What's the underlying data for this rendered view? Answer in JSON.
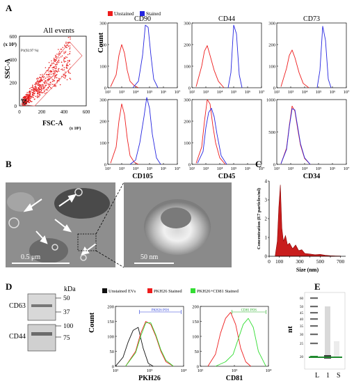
{
  "panel_labels": {
    "a": "A",
    "b": "B",
    "c": "C",
    "d": "D",
    "e": "E"
  },
  "colors": {
    "unstained": "#ee1c1c",
    "stained": "#2424e0",
    "pkh_black": "#111111",
    "pkh_red": "#ee1c1c",
    "pkh_green": "#33dd33",
    "band_green": "#1f8a2e",
    "gate": "#e86a6a"
  },
  "icons": {
    "legend_unstained": "red-square-icon",
    "legend_stained": "blue-square-icon"
  },
  "scatter": {
    "title": "All events",
    "gate_label": "P1(92.97 %)",
    "ylabel": "SSC-A",
    "yunit": "(x 10³)",
    "xlabel": "FSC-A",
    "xunit": "(x 10³)",
    "yticks": [
      "0",
      "200",
      "400",
      "600"
    ],
    "xticks": [
      "0",
      "200",
      "400",
      "600"
    ]
  },
  "panel_a": {
    "count_label": "Count",
    "legend": {
      "unstained": "Unstained",
      "stained": "Stained"
    },
    "xticks": [
      "10²",
      "10³",
      "10⁴",
      "10⁵",
      "10⁶",
      "10⁷"
    ],
    "row1_yticks": [
      "0",
      "100",
      "200",
      "300"
    ],
    "row2_yticks": {
      "cd105": [
        "0",
        "100",
        "200",
        "300"
      ],
      "cd45": [
        "0",
        "100",
        "200",
        "300"
      ],
      "cd34": [
        "0",
        "500",
        "1000"
      ]
    }
  },
  "panel_b": {
    "scale_left": "0.5 μm",
    "scale_right": "50 nm"
  },
  "panel_d": {
    "kda_label": "kDa",
    "blot1": {
      "label": "CD63",
      "markers": [
        "50",
        "37"
      ]
    },
    "blot2": {
      "label": "CD44",
      "markers": [
        "100",
        "75"
      ]
    },
    "legend": [
      "Unstained EVs",
      "PKH26 Stained",
      "PKH26+CD81 Stained"
    ],
    "count_label": "Count",
    "yticks": [
      "0",
      "50",
      "100",
      "150",
      "200"
    ],
    "xticks": [
      "10²",
      "10³",
      "10⁴"
    ],
    "gate1": "PKH26 POS",
    "gate2": "CD81 POS",
    "xlabel1": "PKH26",
    "xlabel2": "CD81"
  },
  "panel_e": {
    "ylabel": "nt",
    "yticks": [
      "60",
      "50",
      "45",
      "40",
      "35",
      "30",
      "25",
      "20"
    ],
    "lanes": [
      "L",
      "1",
      "S"
    ]
  },
  "chart_data": [
    {
      "type": "scatter",
      "title": "All events",
      "xlabel": "FSC-A",
      "ylabel": "SSC-A",
      "xlim": [
        0,
        600
      ],
      "ylim": [
        0,
        600
      ],
      "gate": {
        "name": "P1(92.97 %)",
        "x": [
          8,
          470,
          470,
          25
        ],
        "y": [
          20,
          600,
          380,
          0
        ]
      },
      "points_density_center": [
        [
          120,
          140
        ],
        [
          180,
          200
        ],
        [
          250,
          280
        ]
      ]
    },
    {
      "type": "line",
      "title": "CD90",
      "xlabel": "",
      "ylabel": "Count",
      "xscale": "log",
      "xlim": [
        2,
        7
      ],
      "ylim": [
        0,
        300
      ],
      "series": [
        {
          "name": "Unstained",
          "x": [
            2.2,
            2.6,
            2.8,
            3.0,
            3.2,
            3.4,
            3.6,
            3.9,
            4.2
          ],
          "values": [
            5,
            60,
            150,
            200,
            160,
            80,
            30,
            10,
            0
          ]
        },
        {
          "name": "Stained",
          "x": [
            3.8,
            4.2,
            4.5,
            4.7,
            4.9,
            5.1,
            5.3,
            5.6
          ],
          "values": [
            0,
            30,
            150,
            290,
            280,
            150,
            40,
            0
          ]
        }
      ]
    },
    {
      "type": "line",
      "title": "CD44",
      "xlabel": "",
      "ylabel": "",
      "xscale": "log",
      "xlim": [
        2,
        7
      ],
      "ylim": [
        0,
        300
      ],
      "series": [
        {
          "name": "Unstained",
          "x": [
            2.3,
            2.7,
            2.9,
            3.1,
            3.3,
            3.6,
            3.9,
            4.3
          ],
          "values": [
            5,
            100,
            170,
            195,
            150,
            80,
            30,
            0
          ]
        },
        {
          "name": "Stained",
          "x": [
            4.6,
            4.8,
            5.0,
            5.2,
            5.4,
            5.6
          ],
          "values": [
            0,
            70,
            290,
            250,
            60,
            0
          ]
        }
      ]
    },
    {
      "type": "line",
      "title": "CD73",
      "xlabel": "",
      "ylabel": "",
      "xscale": "log",
      "xlim": [
        2,
        7
      ],
      "ylim": [
        0,
        300
      ],
      "series": [
        {
          "name": "Unstained",
          "x": [
            2.3,
            2.7,
            2.9,
            3.1,
            3.3,
            3.6,
            3.9,
            4.3
          ],
          "values": [
            5,
            90,
            150,
            175,
            140,
            70,
            20,
            0
          ]
        },
        {
          "name": "Stained",
          "x": [
            4.9,
            5.1,
            5.3,
            5.5,
            5.7,
            5.9
          ],
          "values": [
            0,
            80,
            285,
            220,
            40,
            0
          ]
        }
      ]
    },
    {
      "type": "line",
      "title": "",
      "xlabel": "CD105",
      "ylabel": "Count",
      "xscale": "log",
      "xlim": [
        2,
        7
      ],
      "ylim": [
        0,
        300
      ],
      "series": [
        {
          "name": "Unstained",
          "x": [
            2.2,
            2.6,
            2.8,
            3.0,
            3.2,
            3.4,
            3.6,
            3.9,
            4.2
          ],
          "values": [
            5,
            80,
            200,
            280,
            230,
            120,
            40,
            10,
            0
          ]
        },
        {
          "name": "Stained",
          "x": [
            3.6,
            4.0,
            4.3,
            4.6,
            4.8,
            5.0,
            5.2,
            5.5,
            5.8
          ],
          "values": [
            0,
            20,
            100,
            220,
            310,
            260,
            140,
            30,
            0
          ]
        }
      ]
    },
    {
      "type": "line",
      "title": "",
      "xlabel": "CD45",
      "ylabel": "",
      "xscale": "log",
      "xlim": [
        2,
        7
      ],
      "ylim": [
        0,
        300
      ],
      "series": [
        {
          "name": "Unstained",
          "x": [
            2.3,
            2.7,
            2.9,
            3.1,
            3.3,
            3.5,
            3.7,
            4.0,
            4.4
          ],
          "values": [
            5,
            80,
            200,
            300,
            280,
            180,
            100,
            30,
            0
          ]
        },
        {
          "name": "Stained",
          "x": [
            2.4,
            2.8,
            3.0,
            3.2,
            3.4,
            3.6,
            3.8,
            4.1,
            4.5
          ],
          "values": [
            5,
            60,
            170,
            240,
            260,
            220,
            140,
            40,
            0
          ]
        }
      ]
    },
    {
      "type": "line",
      "title": "",
      "xlabel": "CD34",
      "ylabel": "",
      "xscale": "log",
      "xlim": [
        2,
        7
      ],
      "ylim": [
        0,
        1000
      ],
      "series": [
        {
          "name": "Unstained",
          "x": [
            2.3,
            2.7,
            2.9,
            3.1,
            3.3,
            3.5,
            3.7,
            4.0,
            4.4
          ],
          "values": [
            10,
            250,
            600,
            900,
            820,
            550,
            300,
            90,
            0
          ]
        },
        {
          "name": "Stained",
          "x": [
            2.3,
            2.7,
            2.9,
            3.1,
            3.3,
            3.5,
            3.7,
            4.0,
            4.4
          ],
          "values": [
            10,
            230,
            580,
            860,
            840,
            580,
            320,
            100,
            0
          ]
        }
      ]
    },
    {
      "type": "area",
      "title": "",
      "xlabel": "Size (nm)",
      "ylabel": "Concentration (E7 particles/ml)",
      "xlim": [
        0,
        750
      ],
      "ylim": [
        0,
        4
      ],
      "xticks": [
        0,
        100,
        200,
        300,
        400,
        500,
        600,
        700
      ],
      "yticks": [
        0,
        1,
        2,
        3,
        4
      ],
      "x": [
        60,
        80,
        95,
        110,
        125,
        140,
        160,
        180,
        200,
        230,
        260,
        290,
        320,
        350,
        400,
        450,
        500,
        550,
        600,
        650,
        700
      ],
      "values": [
        0.05,
        0.8,
        2.6,
        3.8,
        1.5,
        0.8,
        1.1,
        0.6,
        0.7,
        0.4,
        0.6,
        0.3,
        0.35,
        0.15,
        0.12,
        0.08,
        0.1,
        0.05,
        0.03,
        0.02,
        0.01
      ]
    },
    {
      "type": "line",
      "title": "",
      "xlabel": "PKH26",
      "ylabel": "Count",
      "xscale": "log",
      "xlim": [
        2,
        4.7
      ],
      "ylim": [
        0,
        200
      ],
      "series": [
        {
          "name": "Unstained EVs",
          "x": [
            2.0,
            2.3,
            2.5,
            2.7,
            2.9,
            3.1,
            3.3,
            3.5
          ],
          "values": [
            0,
            30,
            80,
            120,
            130,
            60,
            10,
            0
          ]
        },
        {
          "name": "PKH26 Stained",
          "x": [
            2.4,
            2.8,
            3.0,
            3.2,
            3.4,
            3.6,
            3.8,
            4.0,
            4.3
          ],
          "values": [
            0,
            50,
            110,
            150,
            140,
            100,
            50,
            15,
            0
          ]
        },
        {
          "name": "PKH26+CD81 Stained",
          "x": [
            2.4,
            2.8,
            3.0,
            3.2,
            3.4,
            3.6,
            3.8,
            4.0,
            4.3
          ],
          "values": [
            0,
            45,
            100,
            145,
            145,
            105,
            55,
            20,
            0
          ]
        }
      ]
    },
    {
      "type": "line",
      "title": "",
      "xlabel": "CD81",
      "ylabel": "",
      "xscale": "log",
      "xlim": [
        2,
        4.7
      ],
      "ylim": [
        0,
        200
      ],
      "series": [
        {
          "name": "PKH26 Stained",
          "x": [
            2.3,
            2.6,
            2.8,
            3.0,
            3.2,
            3.4,
            3.6,
            3.8,
            4.0
          ],
          "values": [
            0,
            40,
            110,
            160,
            180,
            140,
            60,
            15,
            0
          ]
        },
        {
          "name": "PKH26+CD81 Stained",
          "x": [
            2.6,
            3.0,
            3.3,
            3.5,
            3.7,
            3.9,
            4.1,
            4.3,
            4.6
          ],
          "values": [
            0,
            15,
            40,
            90,
            140,
            160,
            130,
            50,
            0
          ]
        }
      ]
    }
  ]
}
